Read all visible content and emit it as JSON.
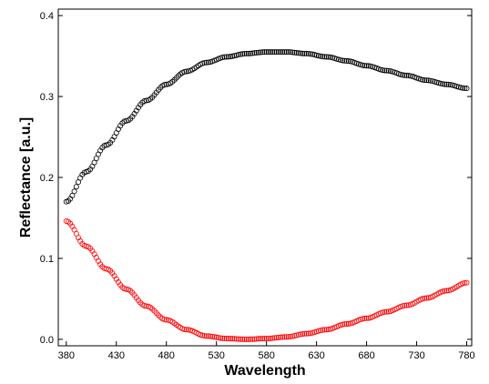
{
  "chart_data": {
    "type": "scatter",
    "title": "",
    "xlabel": "Wavelength",
    "ylabel": "Reflectance [a.u.]",
    "xlim": [
      372,
      785
    ],
    "ylim": [
      -0.008,
      0.408
    ],
    "xticks": [
      380,
      430,
      480,
      530,
      580,
      630,
      680,
      730,
      780
    ],
    "yticks": [
      0.0,
      0.1,
      0.2,
      0.3,
      0.4
    ],
    "ytick_labels": [
      "0.0",
      "0.1",
      "0.2",
      "0.3",
      "0.4"
    ],
    "grid": false,
    "legend": "none",
    "series": [
      {
        "color": "#000000",
        "marker": "open-circle",
        "x_start": 380,
        "x_end": 780,
        "x_step": 2,
        "x": [
          380,
          400,
          420,
          440,
          460,
          480,
          500,
          520,
          540,
          560,
          580,
          600,
          620,
          640,
          660,
          680,
          700,
          720,
          740,
          760,
          780
        ],
        "y": [
          0.17,
          0.207,
          0.24,
          0.27,
          0.295,
          0.315,
          0.331,
          0.342,
          0.349,
          0.353,
          0.355,
          0.355,
          0.353,
          0.349,
          0.344,
          0.338,
          0.332,
          0.326,
          0.32,
          0.315,
          0.31
        ]
      },
      {
        "color": "#ff0000",
        "marker": "open-circle",
        "x_start": 380,
        "x_end": 780,
        "x_step": 2,
        "x": [
          380,
          400,
          420,
          440,
          460,
          480,
          500,
          520,
          540,
          560,
          580,
          600,
          620,
          640,
          660,
          680,
          700,
          720,
          740,
          760,
          780
        ],
        "y": [
          0.146,
          0.115,
          0.087,
          0.062,
          0.041,
          0.024,
          0.012,
          0.004,
          0.001,
          0.0,
          0.001,
          0.003,
          0.007,
          0.012,
          0.019,
          0.026,
          0.034,
          0.042,
          0.051,
          0.06,
          0.07
        ]
      }
    ]
  }
}
